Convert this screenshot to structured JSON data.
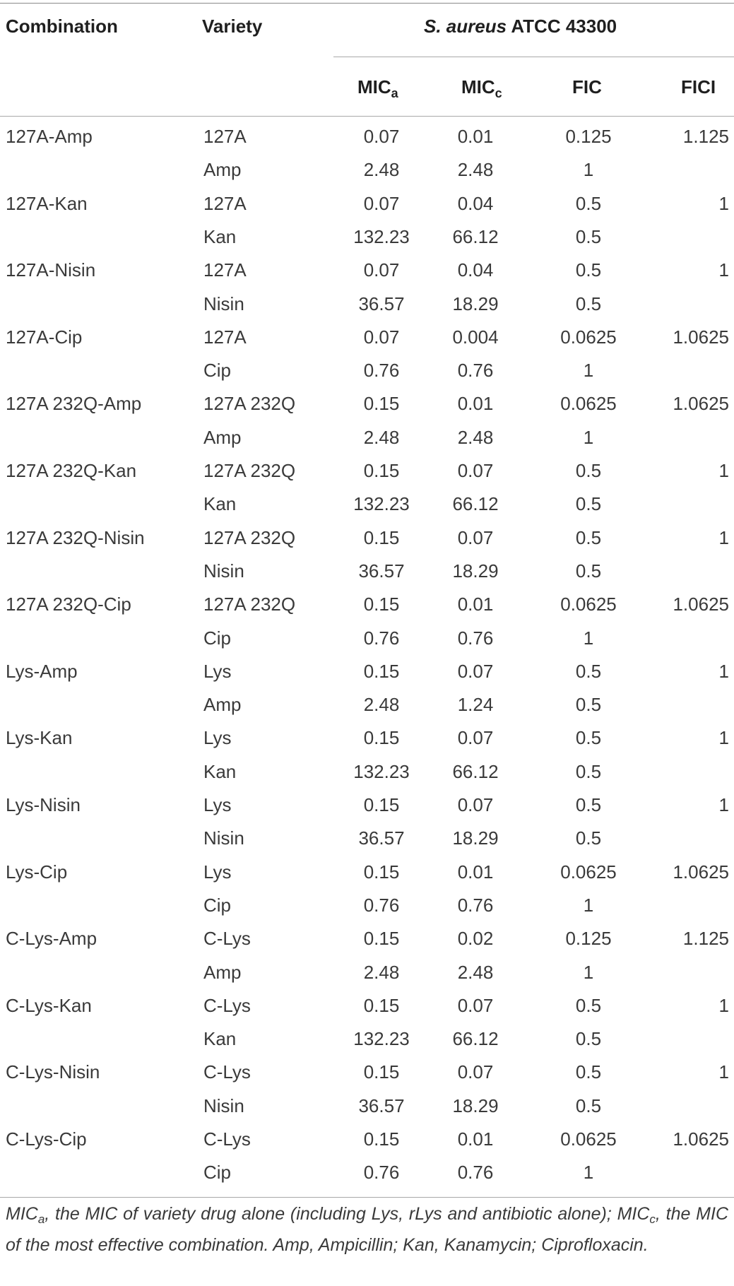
{
  "headers": {
    "combination": "Combination",
    "variety": "Variety",
    "organism_italic": "S. aureus",
    "organism_strain": "ATCC 43300",
    "mic_a_base": "MIC",
    "mic_a_sub": "a",
    "mic_c_base": "MIC",
    "mic_c_sub": "c",
    "fic": "FIC",
    "fici": "FICI"
  },
  "rows": [
    [
      "127A-Amp",
      "127A",
      "0.07",
      "0.01",
      "0.125",
      "1.125"
    ],
    [
      "",
      "Amp",
      "2.48",
      "2.48",
      "1",
      ""
    ],
    [
      "127A-Kan",
      "127A",
      "0.07",
      "0.04",
      "0.5",
      "1"
    ],
    [
      "",
      "Kan",
      "132.23",
      "66.12",
      "0.5",
      ""
    ],
    [
      "127A-Nisin",
      "127A",
      "0.07",
      "0.04",
      "0.5",
      "1"
    ],
    [
      "",
      "Nisin",
      "36.57",
      "18.29",
      "0.5",
      ""
    ],
    [
      "127A-Cip",
      "127A",
      "0.07",
      "0.004",
      "0.0625",
      "1.0625"
    ],
    [
      "",
      "Cip",
      "0.76",
      "0.76",
      "1",
      ""
    ],
    [
      "127A 232Q-Amp",
      "127A 232Q",
      "0.15",
      "0.01",
      "0.0625",
      "1.0625"
    ],
    [
      "",
      "Amp",
      "2.48",
      "2.48",
      "1",
      ""
    ],
    [
      "127A 232Q-Kan",
      "127A 232Q",
      "0.15",
      "0.07",
      "0.5",
      "1"
    ],
    [
      "",
      "Kan",
      "132.23",
      "66.12",
      "0.5",
      ""
    ],
    [
      "127A 232Q-Nisin",
      "127A 232Q",
      "0.15",
      "0.07",
      "0.5",
      "1"
    ],
    [
      "",
      "Nisin",
      "36.57",
      "18.29",
      "0.5",
      ""
    ],
    [
      "127A 232Q-Cip",
      "127A 232Q",
      "0.15",
      "0.01",
      "0.0625",
      "1.0625"
    ],
    [
      "",
      "Cip",
      "0.76",
      "0.76",
      "1",
      ""
    ],
    [
      "Lys-Amp",
      "Lys",
      "0.15",
      "0.07",
      "0.5",
      "1"
    ],
    [
      "",
      "Amp",
      "2.48",
      "1.24",
      "0.5",
      ""
    ],
    [
      "Lys-Kan",
      "Lys",
      "0.15",
      "0.07",
      "0.5",
      "1"
    ],
    [
      "",
      "Kan",
      "132.23",
      "66.12",
      "0.5",
      ""
    ],
    [
      "Lys-Nisin",
      "Lys",
      "0.15",
      "0.07",
      "0.5",
      "1"
    ],
    [
      "",
      "Nisin",
      "36.57",
      "18.29",
      "0.5",
      ""
    ],
    [
      "Lys-Cip",
      "Lys",
      "0.15",
      "0.01",
      "0.0625",
      "1.0625"
    ],
    [
      "",
      "Cip",
      "0.76",
      "0.76",
      "1",
      ""
    ],
    [
      "C-Lys-Amp",
      "C-Lys",
      "0.15",
      "0.02",
      "0.125",
      "1.125"
    ],
    [
      "",
      "Amp",
      "2.48",
      "2.48",
      "1",
      ""
    ],
    [
      "C-Lys-Kan",
      "C-Lys",
      "0.15",
      "0.07",
      "0.5",
      "1"
    ],
    [
      "",
      "Kan",
      "132.23",
      "66.12",
      "0.5",
      ""
    ],
    [
      "C-Lys-Nisin",
      "C-Lys",
      "0.15",
      "0.07",
      "0.5",
      "1"
    ],
    [
      "",
      "Nisin",
      "36.57",
      "18.29",
      "0.5",
      ""
    ],
    [
      "C-Lys-Cip",
      "C-Lys",
      "0.15",
      "0.01",
      "0.0625",
      "1.0625"
    ],
    [
      "",
      "Cip",
      "0.76",
      "0.76",
      "1",
      ""
    ]
  ],
  "footnote": {
    "p1_base": "MIC",
    "p1_sub": "a",
    "p1_text": ", the MIC of variety drug alone (including Lys, rLys and antibiotic alone); ",
    "p2_base": "MIC",
    "p2_sub": "c",
    "p2_text": ", the MIC of the most effective combination. Amp, Ampicillin; Kan, Kanamycin; Ciprofloxacin."
  }
}
